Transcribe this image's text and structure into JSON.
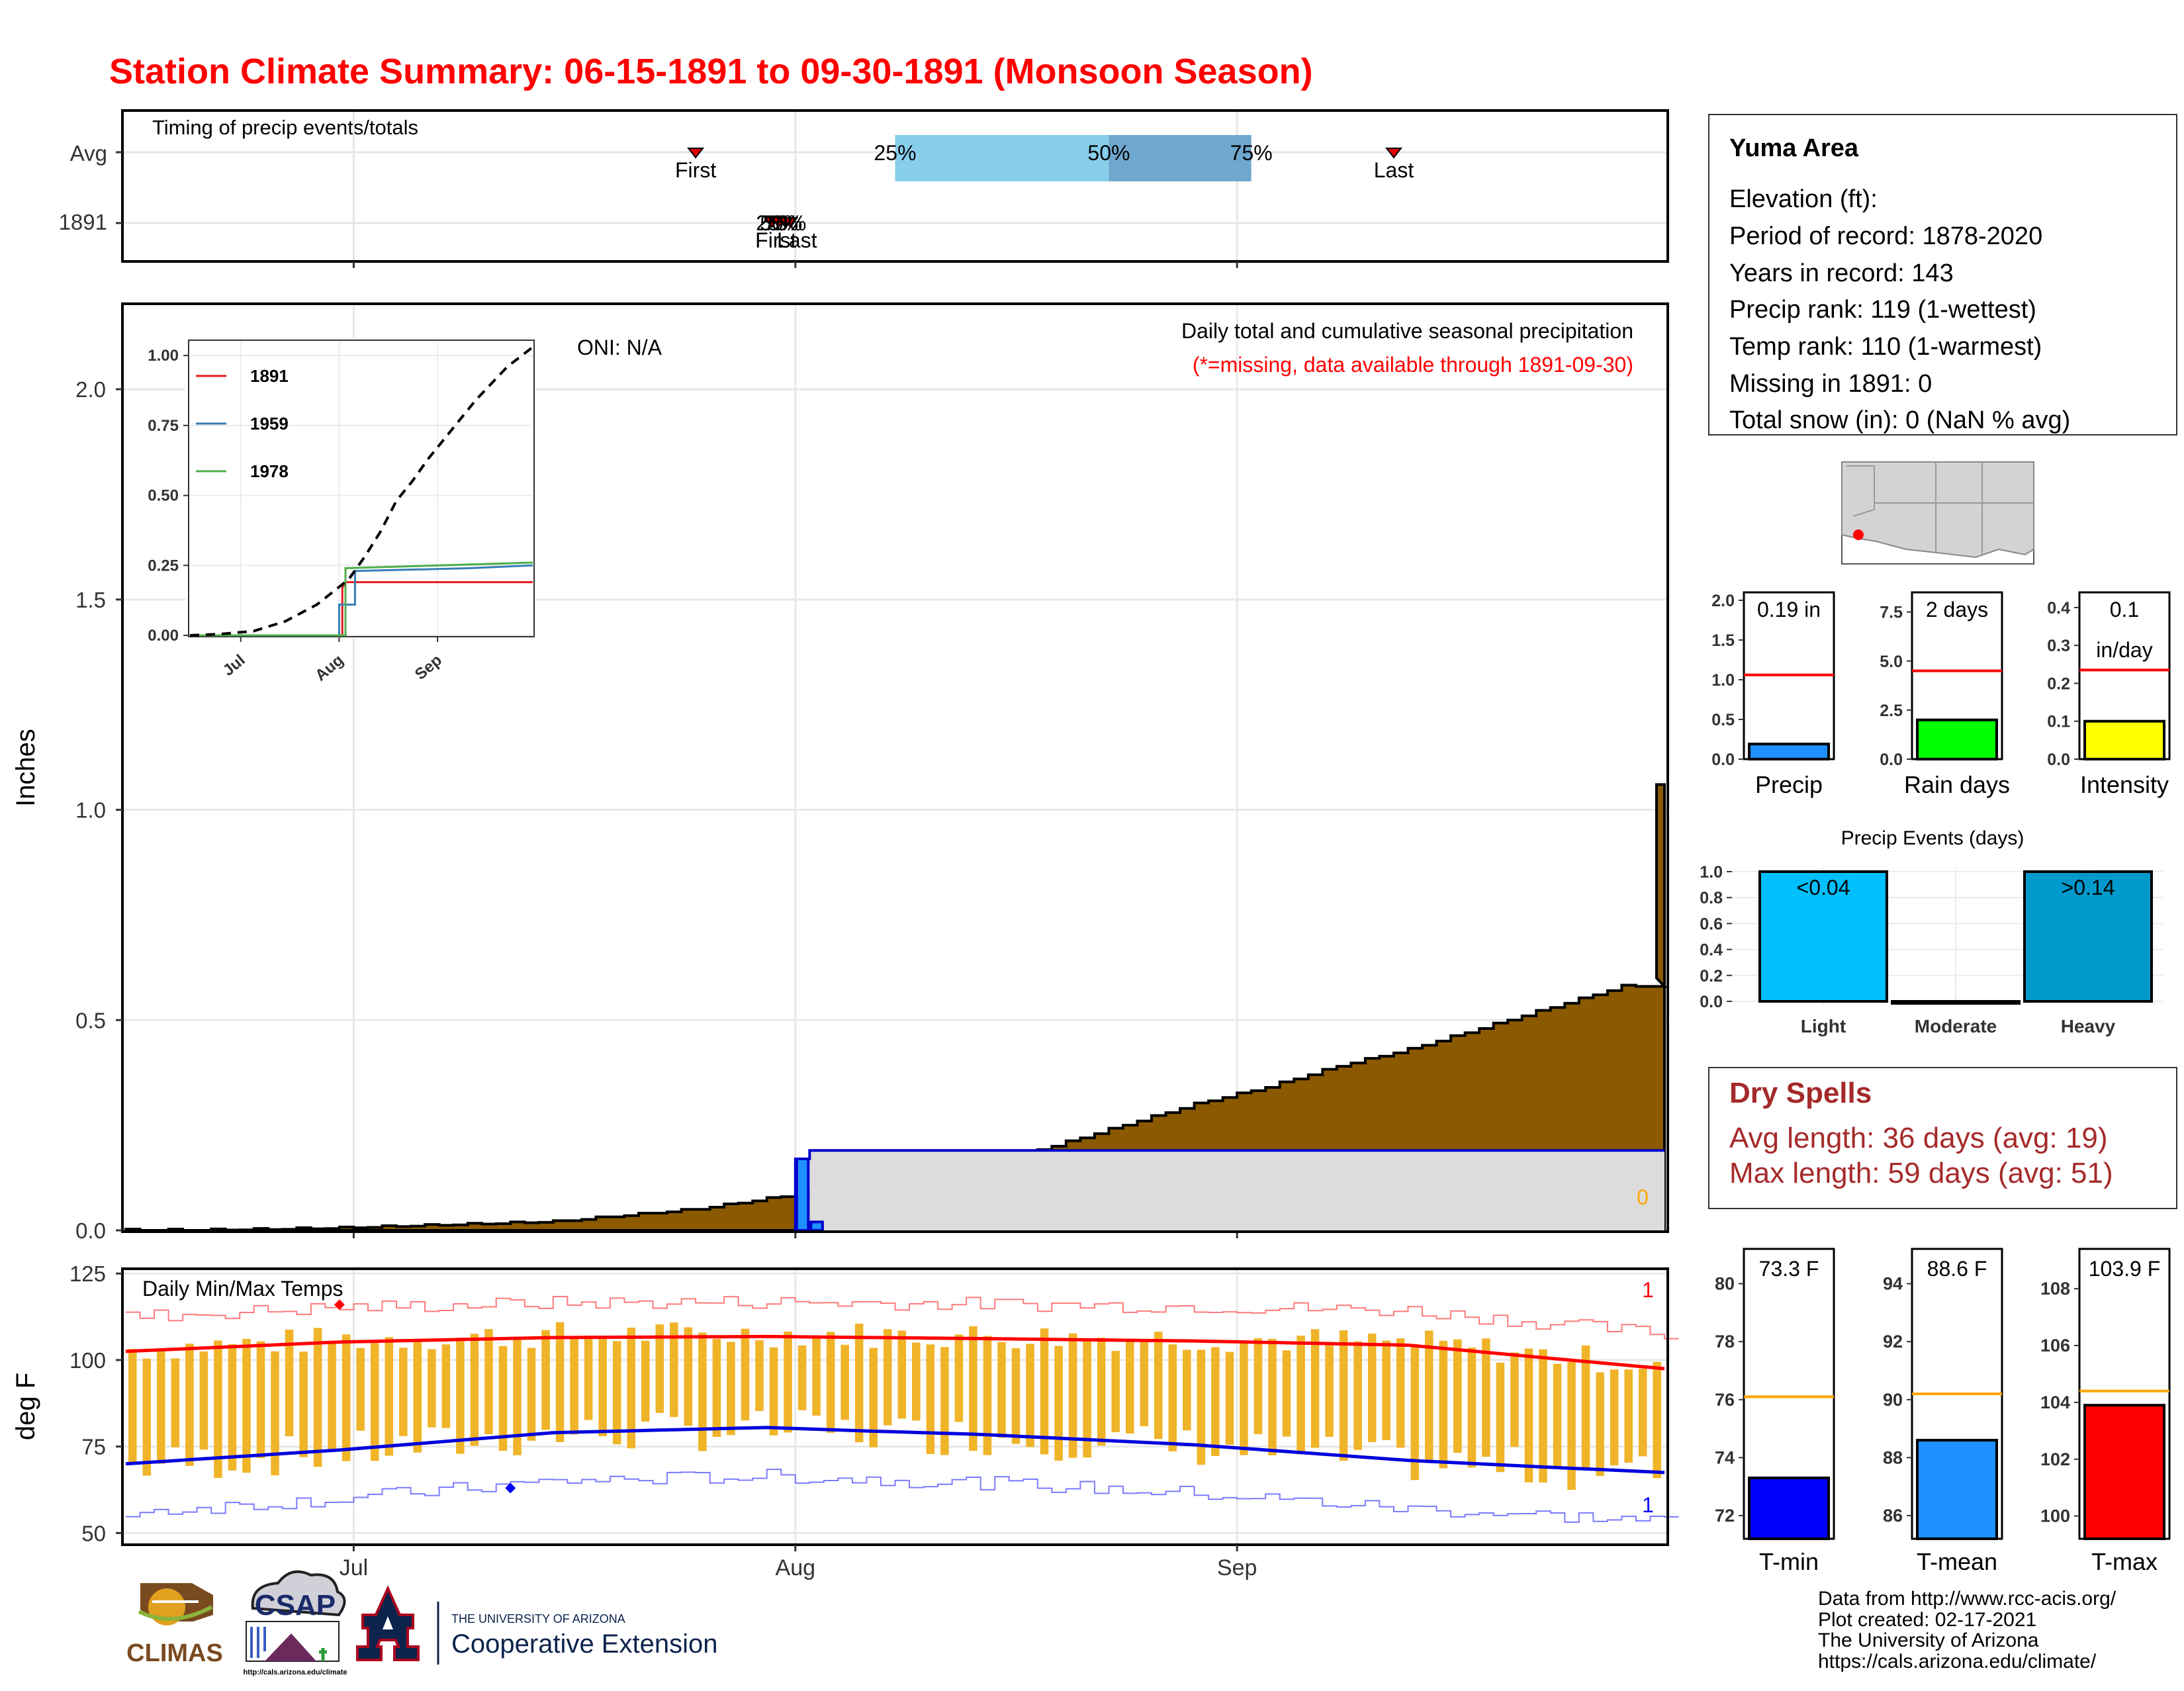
{
  "title": "Station Climate Summary: 06-15-1891 to 09-30-1891 (Monsoon Season)",
  "colors": {
    "title": "#ff0000",
    "cumulative_fill": "#8b5a00",
    "reference_fill": "#dcdcdc",
    "reference_line": "#0000cc",
    "temp_bar": "#f0b429",
    "tmax_line": "#ff0000",
    "tmin_line": "#0000dd",
    "dry_spells": "#a52a2a"
  },
  "info_box": {
    "station": "Yuma Area",
    "lines": [
      "Elevation (ft):",
      "Period of record: 1878-2020",
      "Years in record: 143",
      "Precip rank: 119 (1-wettest)",
      "Temp rank: 110 (1-warmest)",
      "Missing in 1891: 0",
      "Total snow (in): 0 (NaN % avg)"
    ]
  },
  "dry_spells": {
    "title": "Dry Spells",
    "avg_length": "Avg length: 36 days (avg: 19)",
    "max_length": "Max length: 59 days (avg: 51)"
  },
  "footer": {
    "lines": [
      "Data from http://www.rcc-acis.org/",
      "Plot created: 02-17-2021",
      "The University of Arizona",
      "https://cals.arizona.edu/climate/"
    ],
    "logos": {
      "climas": "CLIMAS",
      "csap": "CSAP",
      "csap_url": "http://cals.arizona.edu/climate",
      "ua_small": "THE UNIVERSITY OF ARIZONA",
      "ua_big": "Cooperative Extension"
    }
  },
  "chart_data": [
    {
      "id": "timing",
      "type": "scatter",
      "title": "Timing of precip events/totals",
      "rows": [
        "Avg",
        "1891"
      ],
      "x_ticks": [
        "Jul",
        "Aug",
        "Sep"
      ],
      "avg": {
        "first": "First",
        "first_date": "1891-07-25",
        "last": "Last",
        "last_date": "1891-09-12",
        "p25_label": "25%",
        "p50_label": "50%",
        "p75_label": "75%",
        "p25_date": "1891-08-08",
        "p50_date": "1891-08-23",
        "p75_date": "1891-09-02"
      },
      "year": {
        "overlap_labels": [
          "25%",
          "50%",
          "75%",
          "First",
          "Last"
        ],
        "date": "1891-07-31"
      }
    },
    {
      "id": "precip",
      "type": "area",
      "title": "Daily total and cumulative seasonal precipitation",
      "subtitle": "(*=missing, data available through 1891-09-30)",
      "oni": "ONI: N/A",
      "ylabel": "Inches",
      "ylim": [
        0,
        2.2
      ],
      "y_ticks": [
        0.0,
        0.5,
        1.0,
        1.5,
        2.0
      ],
      "y_tick_labels": [
        "0.0",
        "0.5",
        "1.0",
        "1.5",
        "2.0"
      ],
      "x_ticks": [
        "Jul",
        "Aug",
        "Sep"
      ],
      "end_label": "0",
      "avg_cumulative": [
        [
          0,
          0.0
        ],
        [
          5,
          0.0
        ],
        [
          10,
          0.002
        ],
        [
          15,
          0.005
        ],
        [
          20,
          0.01
        ],
        [
          25,
          0.015
        ],
        [
          30,
          0.02
        ],
        [
          35,
          0.035
        ],
        [
          40,
          0.05
        ],
        [
          45,
          0.075
        ],
        [
          50,
          0.1
        ],
        [
          55,
          0.125
        ],
        [
          60,
          0.16
        ],
        [
          65,
          0.2
        ],
        [
          70,
          0.25
        ],
        [
          75,
          0.3
        ],
        [
          80,
          0.34
        ],
        [
          85,
          0.39
        ],
        [
          90,
          0.43
        ],
        [
          95,
          0.48
        ],
        [
          100,
          0.53
        ],
        [
          105,
          0.58
        ],
        [
          108,
          1.06
        ]
      ],
      "year_cumulative": [
        [
          0,
          0.0
        ],
        [
          47,
          0.0
        ],
        [
          48,
          0.17
        ],
        [
          49,
          0.19
        ],
        [
          50,
          0.19
        ],
        [
          108,
          0.19
        ]
      ],
      "daily": [
        [
          48,
          0.17
        ],
        [
          49,
          0.02
        ]
      ]
    },
    {
      "id": "inset",
      "type": "line",
      "legend": [
        "1891",
        "1959",
        "1978"
      ],
      "ylim": [
        0,
        1.05
      ],
      "y_ticks": [
        0.0,
        0.25,
        0.5,
        0.75,
        1.0
      ],
      "y_tick_labels": [
        "0.00",
        "0.25",
        "0.50",
        "0.75",
        "1.00"
      ],
      "x_ticks": [
        "Jul",
        "Aug",
        "Sep"
      ],
      "series": [
        {
          "name": "1891",
          "color": "#e41a1c",
          "points": [
            [
              0,
              0
            ],
            [
              48,
              0
            ],
            [
              48,
              0.17
            ],
            [
              49,
              0.19
            ],
            [
              108,
              0.19
            ]
          ]
        },
        {
          "name": "1959",
          "color": "#377eb8",
          "points": [
            [
              0,
              0
            ],
            [
              47,
              0
            ],
            [
              47,
              0.11
            ],
            [
              52,
              0.11
            ],
            [
              52,
              0.23
            ],
            [
              88,
              0.24
            ],
            [
              108,
              0.25
            ]
          ]
        },
        {
          "name": "1978",
          "color": "#4daf4a",
          "points": [
            [
              0,
              0
            ],
            [
              49,
              0
            ],
            [
              49,
              0.24
            ],
            [
              108,
              0.26
            ]
          ]
        },
        {
          "name": "Average",
          "color": "#000000",
          "dashed": true,
          "points": [
            [
              0,
              0
            ],
            [
              10,
              0.005
            ],
            [
              20,
              0.015
            ],
            [
              30,
              0.05
            ],
            [
              40,
              0.11
            ],
            [
              50,
              0.2
            ],
            [
              55,
              0.28
            ],
            [
              60,
              0.37
            ],
            [
              65,
              0.48
            ],
            [
              70,
              0.55
            ],
            [
              75,
              0.63
            ],
            [
              80,
              0.7
            ],
            [
              85,
              0.77
            ],
            [
              90,
              0.84
            ],
            [
              95,
              0.9
            ],
            [
              100,
              0.96
            ],
            [
              108,
              1.03
            ]
          ]
        }
      ]
    },
    {
      "id": "temps",
      "type": "bar",
      "title": "Daily Min/Max Temps",
      "ylabel": "deg F",
      "ylim": [
        47,
        126
      ],
      "y_ticks": [
        50,
        75,
        100,
        125
      ],
      "x_ticks": [
        "Jul",
        "Aug",
        "Sep"
      ],
      "record_label_top": "1",
      "record_label_bottom": "1",
      "avg_tmax": [
        [
          0,
          102.5
        ],
        [
          15,
          105.2
        ],
        [
          30,
          106.5
        ],
        [
          45,
          106.8
        ],
        [
          60,
          106.2
        ],
        [
          75,
          105.5
        ],
        [
          90,
          104.3
        ],
        [
          100,
          100.5
        ],
        [
          108,
          97.5
        ]
      ],
      "avg_tmin": [
        [
          0,
          70
        ],
        [
          15,
          74
        ],
        [
          30,
          79
        ],
        [
          45,
          80.5
        ],
        [
          52,
          79.5
        ],
        [
          60,
          78.5
        ],
        [
          75,
          75.5
        ],
        [
          90,
          71
        ],
        [
          100,
          69
        ],
        [
          108,
          67.5
        ]
      ],
      "daily_max_start": 98,
      "daily_max_amp": 8,
      "daily_min_start": 68,
      "daily_min_amp": 6
    },
    {
      "id": "mini_precip",
      "type": "bar",
      "panels": [
        {
          "label": "Precip",
          "value_label": "0.19 in",
          "value": 0.19,
          "avg": 1.06,
          "ylim": [
            0,
            2.1
          ],
          "ticks": [
            0.0,
            0.5,
            1.0,
            1.5,
            2.0
          ],
          "tick_labels": [
            "0.0",
            "0.5",
            "1.0",
            "1.5",
            "2.0"
          ],
          "color": "#1e90ff"
        },
        {
          "label": "Rain days",
          "value_label": "2 days",
          "value": 2,
          "avg": 4.5,
          "ylim": [
            0,
            8.5
          ],
          "ticks": [
            0.0,
            2.5,
            5.0,
            7.5
          ],
          "tick_labels": [
            "0.0",
            "2.5",
            "5.0",
            "7.5"
          ],
          "color": "#00ff00"
        },
        {
          "label": "Intensity",
          "value_label": "0.1",
          "value_label_2": "in/day",
          "value": 0.1,
          "avg": 0.235,
          "ylim": [
            0,
            0.44
          ],
          "ticks": [
            0.0,
            0.1,
            0.2,
            0.3,
            0.4
          ],
          "tick_labels": [
            "0.0",
            "0.1",
            "0.2",
            "0.3",
            "0.4"
          ],
          "color": "#ffff00"
        }
      ]
    },
    {
      "id": "events",
      "type": "bar",
      "title": "Precip Events (days)",
      "categories": [
        "Light",
        "Moderate",
        "Heavy"
      ],
      "bar_labels": [
        "<0.04",
        "",
        ">0.14"
      ],
      "values": [
        1.0,
        0.0,
        1.0
      ],
      "colors": [
        "#00bfff",
        "#333333",
        "#0099cc"
      ],
      "ylim": [
        0,
        1.0
      ],
      "ticks": [
        0.0,
        0.2,
        0.4,
        0.6,
        0.8,
        1.0
      ],
      "tick_labels": [
        "0.0",
        "0.2",
        "0.4",
        "0.6",
        "0.8",
        "1.0"
      ]
    },
    {
      "id": "mini_temps",
      "type": "bar",
      "panels": [
        {
          "label": "T-min",
          "value_label": "73.3 F",
          "value": 73.3,
          "avg": 76.1,
          "ylim": [
            71.2,
            81.2
          ],
          "ticks": [
            72,
            74,
            76,
            78,
            80
          ],
          "color": "#0000ff"
        },
        {
          "label": "T-mean",
          "value_label": "88.6 F",
          "value": 88.6,
          "avg": 90.2,
          "ylim": [
            85.2,
            95.2
          ],
          "ticks": [
            86,
            88,
            90,
            92,
            94
          ],
          "color": "#1e90ff"
        },
        {
          "label": "T-max",
          "value_label": "103.9 F",
          "value": 103.9,
          "avg": 104.4,
          "ylim": [
            99.2,
            109.4
          ],
          "ticks": [
            100,
            102,
            104,
            106,
            108
          ],
          "color": "#ff0000"
        }
      ]
    }
  ]
}
